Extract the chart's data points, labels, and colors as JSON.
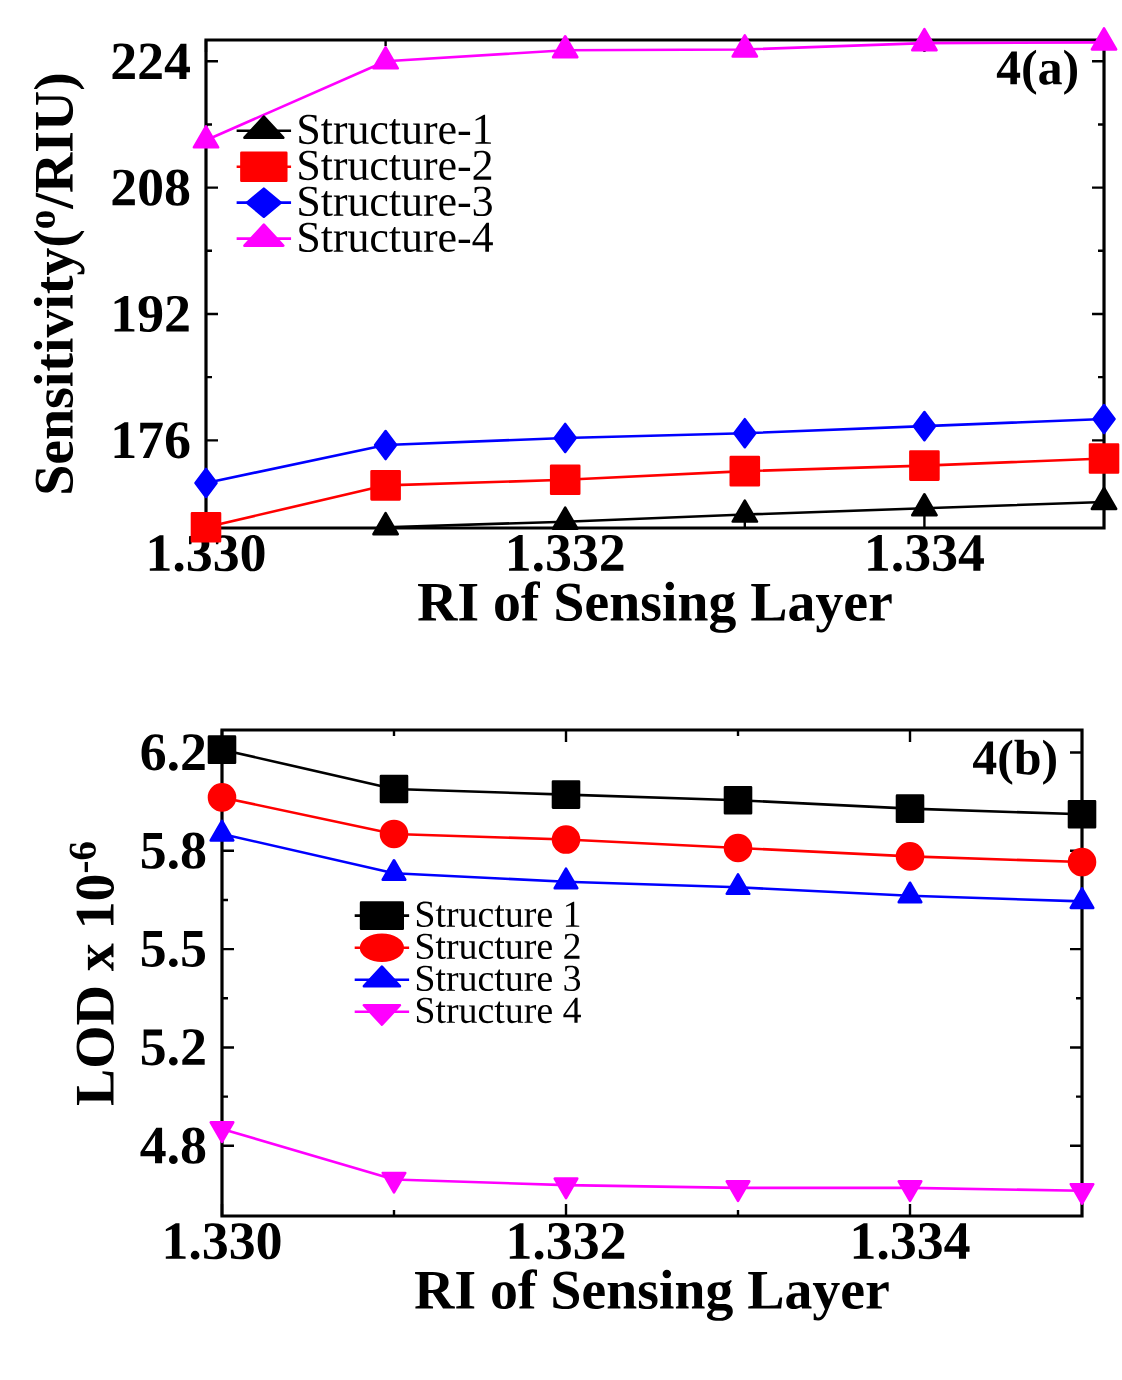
{
  "chart_data": [
    {
      "type": "line",
      "xlabel": "RI of Sensing Layer",
      "ylabel": "Sensitivity($^{o}$/RIU)",
      "annotations": [
        "4(a)"
      ],
      "x": [
        1.33,
        1.331,
        1.332,
        1.333,
        1.334,
        1.335
      ],
      "xlim": [
        1.33,
        1.335
      ],
      "xticks": [
        {
          "value": 1.33,
          "label": "1.330"
        },
        {
          "value": 1.332,
          "label": "1.332"
        },
        {
          "value": 1.334,
          "label": "1.334"
        }
      ],
      "ylim": [
        164.9,
        226.7
      ],
      "yticks": [
        176,
        192,
        208,
        224
      ],
      "legend": "top left",
      "grid": false,
      "line_style": "solid",
      "series": [
        {
          "name": "Structure-1",
          "color": "#000000",
          "marker": "triangle",
          "values": [
            null,
            165,
            165.7,
            166.6,
            167.4,
            168.2
          ]
        },
        {
          "name": "Structure-2",
          "color": "#ff0000",
          "marker": "square",
          "values": [
            165,
            170.3,
            171,
            172.1,
            172.8,
            173.7
          ]
        },
        {
          "name": "Structure-3",
          "color": "#0000ff",
          "marker": "diamond",
          "values": [
            170.6,
            175.4,
            176.3,
            176.9,
            177.8,
            178.7
          ]
        },
        {
          "name": "Structure-4",
          "color": "#ff00ff",
          "marker": "triangle",
          "values": [
            214,
            224,
            225.4,
            225.5,
            226.3,
            226.4
          ]
        }
      ]
    },
    {
      "type": "line",
      "xlabel": "RI of Sensing Layer",
      "ylabel": "LOD  x 10$^{-6}$",
      "annotations": [
        "4(b)"
      ],
      "x": [
        1.33,
        1.331,
        1.332,
        1.333,
        1.334,
        1.335
      ],
      "xlim": [
        1.33,
        1.335
      ],
      "xticks": [
        {
          "value": 1.33,
          "label": "1.330"
        },
        {
          "value": 1.332,
          "label": "1.332"
        },
        {
          "value": 1.334,
          "label": "1.334"
        }
      ],
      "ylim": [
        4.55,
        6.28
      ],
      "yticks": [
        4.8,
        {
          "value": 5.15,
          "label": "5.2"
        },
        5.5,
        {
          "value": 5.85,
          "label": "5.8"
        },
        6.2
      ],
      "legend": "center",
      "grid": false,
      "line_style": "solid",
      "series": [
        {
          "name": "Structure 1",
          "color": "#000000",
          "marker": "square",
          "values": [
            6.21,
            6.07,
            6.05,
            6.03,
            6.0,
            5.98
          ]
        },
        {
          "name": "Structure 2",
          "color": "#ff0000",
          "marker": "circle",
          "values": [
            6.04,
            5.91,
            5.89,
            5.86,
            5.83,
            5.81
          ]
        },
        {
          "name": "Structure 3",
          "color": "#0000ff",
          "marker": "triangle",
          "values": [
            5.91,
            5.77,
            5.74,
            5.72,
            5.69,
            5.67
          ]
        },
        {
          "name": "Structure 4",
          "color": "#ff00ff",
          "marker": "triangle-down",
          "values": [
            4.86,
            4.68,
            4.66,
            4.65,
            4.65,
            4.64
          ]
        }
      ]
    }
  ]
}
